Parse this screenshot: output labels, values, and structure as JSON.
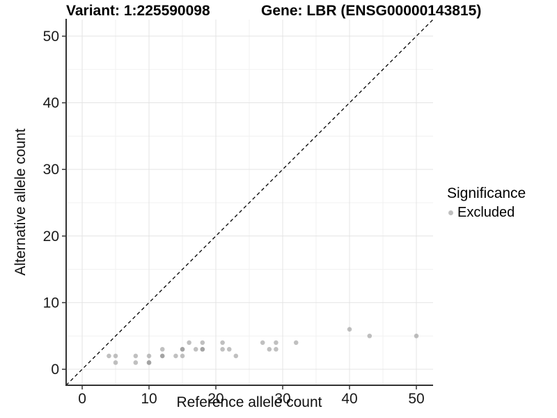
{
  "chart_data": {
    "type": "scatter",
    "title_left": "Variant: 1:225590098",
    "title_right": "Gene: LBR (ENSG00000143815)",
    "xlabel": "Reference allele count",
    "ylabel": "Alternative allele count",
    "xlim": [
      -2.4,
      52.5
    ],
    "ylim": [
      -2.4,
      52.5
    ],
    "x_major_ticks": [
      0,
      10,
      20,
      30,
      40,
      50
    ],
    "x_minor_ticks": [
      5,
      15,
      25,
      35,
      45
    ],
    "y_major_ticks": [
      0,
      10,
      20,
      30,
      40,
      50
    ],
    "y_minor_ticks": [
      5,
      15,
      25,
      35,
      45
    ],
    "grid": true,
    "identity_line": {
      "style": "dashed",
      "color": "#000000",
      "slope": 1,
      "intercept": 0
    },
    "series": [
      {
        "name": "Excluded",
        "color": "#8c8c8c",
        "opacity": 0.55,
        "points": [
          [
            4,
            2
          ],
          [
            5,
            1
          ],
          [
            5,
            2
          ],
          [
            8,
            1
          ],
          [
            8,
            2
          ],
          [
            10,
            1
          ],
          [
            10,
            1
          ],
          [
            10,
            2
          ],
          [
            12,
            2
          ],
          [
            12,
            2
          ],
          [
            12,
            3
          ],
          [
            14,
            2
          ],
          [
            15,
            2
          ],
          [
            15,
            3
          ],
          [
            15,
            3
          ],
          [
            16,
            4
          ],
          [
            17,
            3
          ],
          [
            18,
            3
          ],
          [
            18,
            3
          ],
          [
            18,
            4
          ],
          [
            21,
            3
          ],
          [
            21,
            4
          ],
          [
            22,
            3
          ],
          [
            23,
            2
          ],
          [
            27,
            4
          ],
          [
            28,
            3
          ],
          [
            29,
            3
          ],
          [
            29,
            4
          ],
          [
            32,
            4
          ],
          [
            40,
            6
          ],
          [
            43,
            5
          ],
          [
            50,
            5
          ]
        ]
      }
    ],
    "legend": {
      "title": "Significance",
      "position": "right",
      "items": [
        {
          "label": "Excluded",
          "color": "#bfbfbf"
        }
      ]
    }
  },
  "colors": {
    "background": "#ffffff",
    "point": "#8c8c8c",
    "point_opacity": 0.55,
    "grid_major": "#e4e4e4",
    "grid_minor": "#f1f1f1",
    "axis_line": "#333333",
    "tick": "#333333",
    "tick_label": "#1a1a1a",
    "identity_line": "#000000"
  }
}
